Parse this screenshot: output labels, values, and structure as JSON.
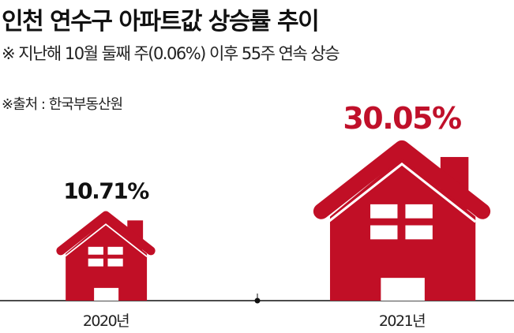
{
  "chart_data": {
    "type": "bar",
    "title": "인천 연수구 아파트값 상승률 추이",
    "subtitle": "※ 지난해 10월 둘째 주(0.06%) 이후 55주 연속 상승",
    "source": "※출처 : 한국부동산원",
    "categories": [
      "2020년",
      "2021년"
    ],
    "values": [
      10.71,
      30.05
    ],
    "value_labels": [
      "10.71%",
      "30.05%"
    ],
    "value_label_colors": [
      "#111111",
      "#c0102a"
    ],
    "mark": "house-icon",
    "grid": false
  },
  "colors": {
    "house": "#c10f26",
    "axis": "#111111"
  }
}
